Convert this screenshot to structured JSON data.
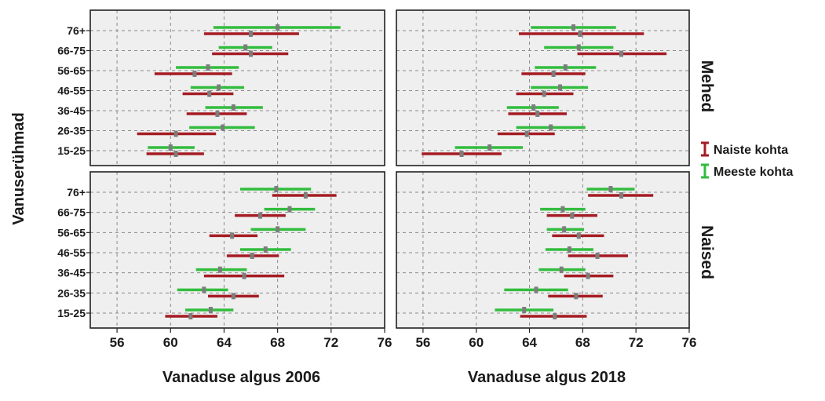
{
  "chart_data": {
    "type": "errorbar",
    "ylabel": "Vanuserühmad",
    "categories": [
      "76+",
      "66-75",
      "56-65",
      "46-55",
      "36-45",
      "26-35",
      "15-25"
    ],
    "columns": [
      {
        "xlabel": "Vanaduse algus 2006",
        "xlim": [
          54,
          76
        ],
        "ticks": [
          56,
          60,
          64,
          68,
          72,
          76
        ]
      },
      {
        "xlabel": "Vanaduse algus 2018",
        "xlim": [
          54,
          76
        ],
        "ticks": [
          56,
          60,
          64,
          68,
          72,
          76
        ]
      }
    ],
    "rows": [
      {
        "label": "Mehed"
      },
      {
        "label": "Naised"
      }
    ],
    "legend": [
      {
        "name": "Naiste kohta",
        "color": "#a51c24"
      },
      {
        "name": "Meeste kohta",
        "color": "#32bd3e"
      }
    ],
    "panels": [
      {
        "column": 0,
        "row": 0,
        "series": [
          {
            "name": "Meeste kohta",
            "points": [
              {
                "category": "76+",
                "mean": 68.0,
                "low": 63.2,
                "high": 72.7
              },
              {
                "category": "66-75",
                "mean": 65.6,
                "low": 63.6,
                "high": 67.6
              },
              {
                "category": "56-65",
                "mean": 62.8,
                "low": 60.4,
                "high": 65.1
              },
              {
                "category": "46-55",
                "mean": 63.6,
                "low": 61.5,
                "high": 65.5
              },
              {
                "category": "36-45",
                "mean": 64.7,
                "low": 62.6,
                "high": 66.9
              },
              {
                "category": "26-35",
                "mean": 63.9,
                "low": 61.4,
                "high": 66.3
              },
              {
                "category": "15-25",
                "mean": 60.0,
                "low": 58.3,
                "high": 61.8
              }
            ]
          },
          {
            "name": "Naiste kohta",
            "points": [
              {
                "category": "76+",
                "mean": 66.0,
                "low": 62.5,
                "high": 69.6
              },
              {
                "category": "66-75",
                "mean": 66.0,
                "low": 63.1,
                "high": 68.8
              },
              {
                "category": "56-65",
                "mean": 61.8,
                "low": 58.8,
                "high": 64.6
              },
              {
                "category": "46-55",
                "mean": 62.9,
                "low": 60.9,
                "high": 64.7
              },
              {
                "category": "36-45",
                "mean": 63.5,
                "low": 61.2,
                "high": 65.7
              },
              {
                "category": "26-35",
                "mean": 60.4,
                "low": 57.5,
                "high": 63.4
              },
              {
                "category": "15-25",
                "mean": 60.4,
                "low": 58.2,
                "high": 62.5
              }
            ]
          }
        ]
      },
      {
        "column": 1,
        "row": 0,
        "series": [
          {
            "name": "Meeste kohta",
            "points": [
              {
                "category": "76+",
                "mean": 67.3,
                "low": 64.1,
                "high": 70.5
              },
              {
                "category": "66-75",
                "mean": 67.7,
                "low": 65.1,
                "high": 70.3
              },
              {
                "category": "56-65",
                "mean": 66.7,
                "low": 64.4,
                "high": 69.0
              },
              {
                "category": "46-55",
                "mean": 66.3,
                "low": 64.1,
                "high": 68.4
              },
              {
                "category": "36-45",
                "mean": 64.3,
                "low": 62.3,
                "high": 66.2
              },
              {
                "category": "26-35",
                "mean": 65.6,
                "low": 63.0,
                "high": 68.2
              },
              {
                "category": "15-25",
                "mean": 61.0,
                "low": 58.4,
                "high": 63.5
              }
            ]
          },
          {
            "name": "Naiste kohta",
            "points": [
              {
                "category": "76+",
                "mean": 67.8,
                "low": 63.2,
                "high": 72.6
              },
              {
                "category": "66-75",
                "mean": 70.9,
                "low": 67.6,
                "high": 74.3
              },
              {
                "category": "56-65",
                "mean": 65.8,
                "low": 63.4,
                "high": 68.2
              },
              {
                "category": "46-55",
                "mean": 65.1,
                "low": 63.0,
                "high": 67.3
              },
              {
                "category": "36-45",
                "mean": 64.6,
                "low": 62.4,
                "high": 66.8
              },
              {
                "category": "26-35",
                "mean": 63.8,
                "low": 61.6,
                "high": 65.9
              },
              {
                "category": "15-25",
                "mean": 58.9,
                "low": 55.9,
                "high": 61.9
              }
            ]
          }
        ]
      },
      {
        "column": 0,
        "row": 1,
        "series": [
          {
            "name": "Meeste kohta",
            "points": [
              {
                "category": "76+",
                "mean": 67.9,
                "low": 65.2,
                "high": 70.5
              },
              {
                "category": "66-75",
                "mean": 68.9,
                "low": 67.0,
                "high": 70.8
              },
              {
                "category": "56-65",
                "mean": 68.0,
                "low": 66.0,
                "high": 70.1
              },
              {
                "category": "46-55",
                "mean": 67.1,
                "low": 65.2,
                "high": 69.0
              },
              {
                "category": "36-45",
                "mean": 63.7,
                "low": 61.9,
                "high": 65.7
              },
              {
                "category": "26-35",
                "mean": 62.5,
                "low": 60.5,
                "high": 64.3
              },
              {
                "category": "15-25",
                "mean": 63.0,
                "low": 61.1,
                "high": 64.7
              }
            ]
          },
          {
            "name": "Naiste kohta",
            "points": [
              {
                "category": "76+",
                "mean": 70.1,
                "low": 67.6,
                "high": 72.4
              },
              {
                "category": "66-75",
                "mean": 66.7,
                "low": 64.8,
                "high": 68.6
              },
              {
                "category": "56-65",
                "mean": 64.6,
                "low": 62.9,
                "high": 66.5
              },
              {
                "category": "46-55",
                "mean": 66.1,
                "low": 64.2,
                "high": 68.1
              },
              {
                "category": "36-45",
                "mean": 65.5,
                "low": 62.5,
                "high": 68.5
              },
              {
                "category": "26-35",
                "mean": 64.7,
                "low": 62.8,
                "high": 66.6
              },
              {
                "category": "15-25",
                "mean": 61.5,
                "low": 59.6,
                "high": 63.5
              }
            ]
          }
        ]
      },
      {
        "column": 1,
        "row": 1,
        "series": [
          {
            "name": "Meeste kohta",
            "points": [
              {
                "category": "76+",
                "mean": 70.1,
                "low": 68.3,
                "high": 71.9
              },
              {
                "category": "66-75",
                "mean": 66.5,
                "low": 64.8,
                "high": 68.2
              },
              {
                "category": "56-65",
                "mean": 66.6,
                "low": 65.3,
                "high": 68.1
              },
              {
                "category": "46-55",
                "mean": 67.0,
                "low": 65.2,
                "high": 68.8
              },
              {
                "category": "36-45",
                "mean": 66.4,
                "low": 64.7,
                "high": 68.2
              },
              {
                "category": "26-35",
                "mean": 64.5,
                "low": 62.1,
                "high": 66.9
              },
              {
                "category": "15-25",
                "mean": 63.6,
                "low": 61.4,
                "high": 65.8
              }
            ]
          },
          {
            "name": "Naiste kohta",
            "points": [
              {
                "category": "76+",
                "mean": 70.9,
                "low": 68.4,
                "high": 73.3
              },
              {
                "category": "66-75",
                "mean": 67.2,
                "low": 65.3,
                "high": 69.1
              },
              {
                "category": "56-65",
                "mean": 67.7,
                "low": 65.7,
                "high": 69.6
              },
              {
                "category": "46-55",
                "mean": 69.1,
                "low": 66.9,
                "high": 71.4
              },
              {
                "category": "36-45",
                "mean": 68.4,
                "low": 66.6,
                "high": 70.3
              },
              {
                "category": "26-35",
                "mean": 67.5,
                "low": 65.4,
                "high": 69.5
              },
              {
                "category": "15-25",
                "mean": 65.9,
                "low": 63.3,
                "high": 68.3
              }
            ]
          }
        ]
      }
    ]
  }
}
